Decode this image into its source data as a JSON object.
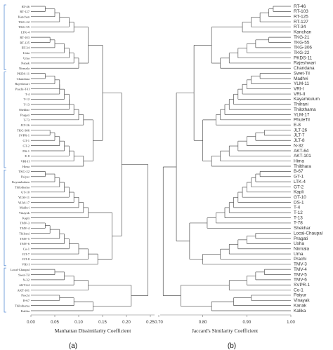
{
  "panels": {
    "a": {
      "label": "(a)",
      "axis_title": "Manhattan Dissimilarity Coefficient",
      "ticks": [
        "0.00",
        "0.05",
        "0.10",
        "0.15",
        "0.20",
        "0.25"
      ],
      "leaves": [
        "RT-46",
        "RT-127",
        "Kanchan",
        "TKG-22",
        "TKG-55",
        "LTK-4",
        "RT-103",
        "RT-125",
        "RT-34",
        "Usha",
        "Uma",
        "Nanak",
        "Nirmala",
        "PKDS-11",
        "Chandana",
        "Rajeshwari",
        "Prachi-T-II",
        "T-4",
        "T-12",
        "T-13",
        "Shekhar",
        "Pragati",
        "T-73",
        "JLT-26",
        "TKG-306",
        "SVPR-1",
        "GT-1",
        "GT-2",
        "DS-1",
        "E-8",
        "VRI-II",
        "Hima",
        "TKG-22",
        "Paiyur",
        "Kayamkulum",
        "Thilothama",
        "GT-10",
        "YLM-11",
        "YLM-17",
        "Madhvi",
        "Vinayak",
        "Kapli",
        "TMV-3",
        "TMV-4",
        "Thilrani",
        "TMV-5",
        "TMV-6",
        "Co-1",
        "JLT-7",
        "JLT-8",
        "VRI-I",
        "Local-Chaupal",
        "Swet-Til",
        "N-32",
        "AKT-64",
        "AKT-101",
        "Prachi",
        "B-67",
        "Thilothama",
        "Kalika"
      ]
    },
    "b": {
      "label": "(b)",
      "axis_title": "Jaccard's Similarity Coefficient",
      "ticks": [
        "0.70",
        "0.80",
        "0.90",
        "1.00"
      ],
      "leaves": [
        "RT-46",
        "RT-103",
        "RT-125",
        "RT-127",
        "RT-34",
        "Kanchan",
        "TKG-21",
        "TKG-55",
        "TKG-306",
        "TKG-22",
        "PKDS-11",
        "Rajeshwari",
        "Chandana",
        "Swet-Til",
        "Madhvi",
        "YLM-11",
        "VRI-I",
        "VRI-II",
        "Kayamkulum",
        "Thilrani",
        "Thilothama",
        "YLM-17",
        "PhuleTil",
        "E-8",
        "JLT-26",
        "JLT-7",
        "JLT-8",
        "N-32",
        "AKT-64",
        "AKT-101",
        "Hima",
        "Thilthara",
        "B-67",
        "GT-1",
        "LTK-4",
        "GT-2",
        "Kapli",
        "GT-10",
        "DS-1",
        "T-4",
        "T-12",
        "T-13",
        "T-78",
        "Shekhar",
        "Local-Chaupal",
        "Pragati",
        "Usha",
        "Nirmala",
        "Uma",
        "Prachi",
        "TMV-3",
        "TMV-4",
        "TMV-5",
        "TMV-6",
        "SVPR-1",
        "Co-1",
        "Paiyur",
        "Vinayak",
        "Kanak",
        "Kalika"
      ]
    }
  }
}
